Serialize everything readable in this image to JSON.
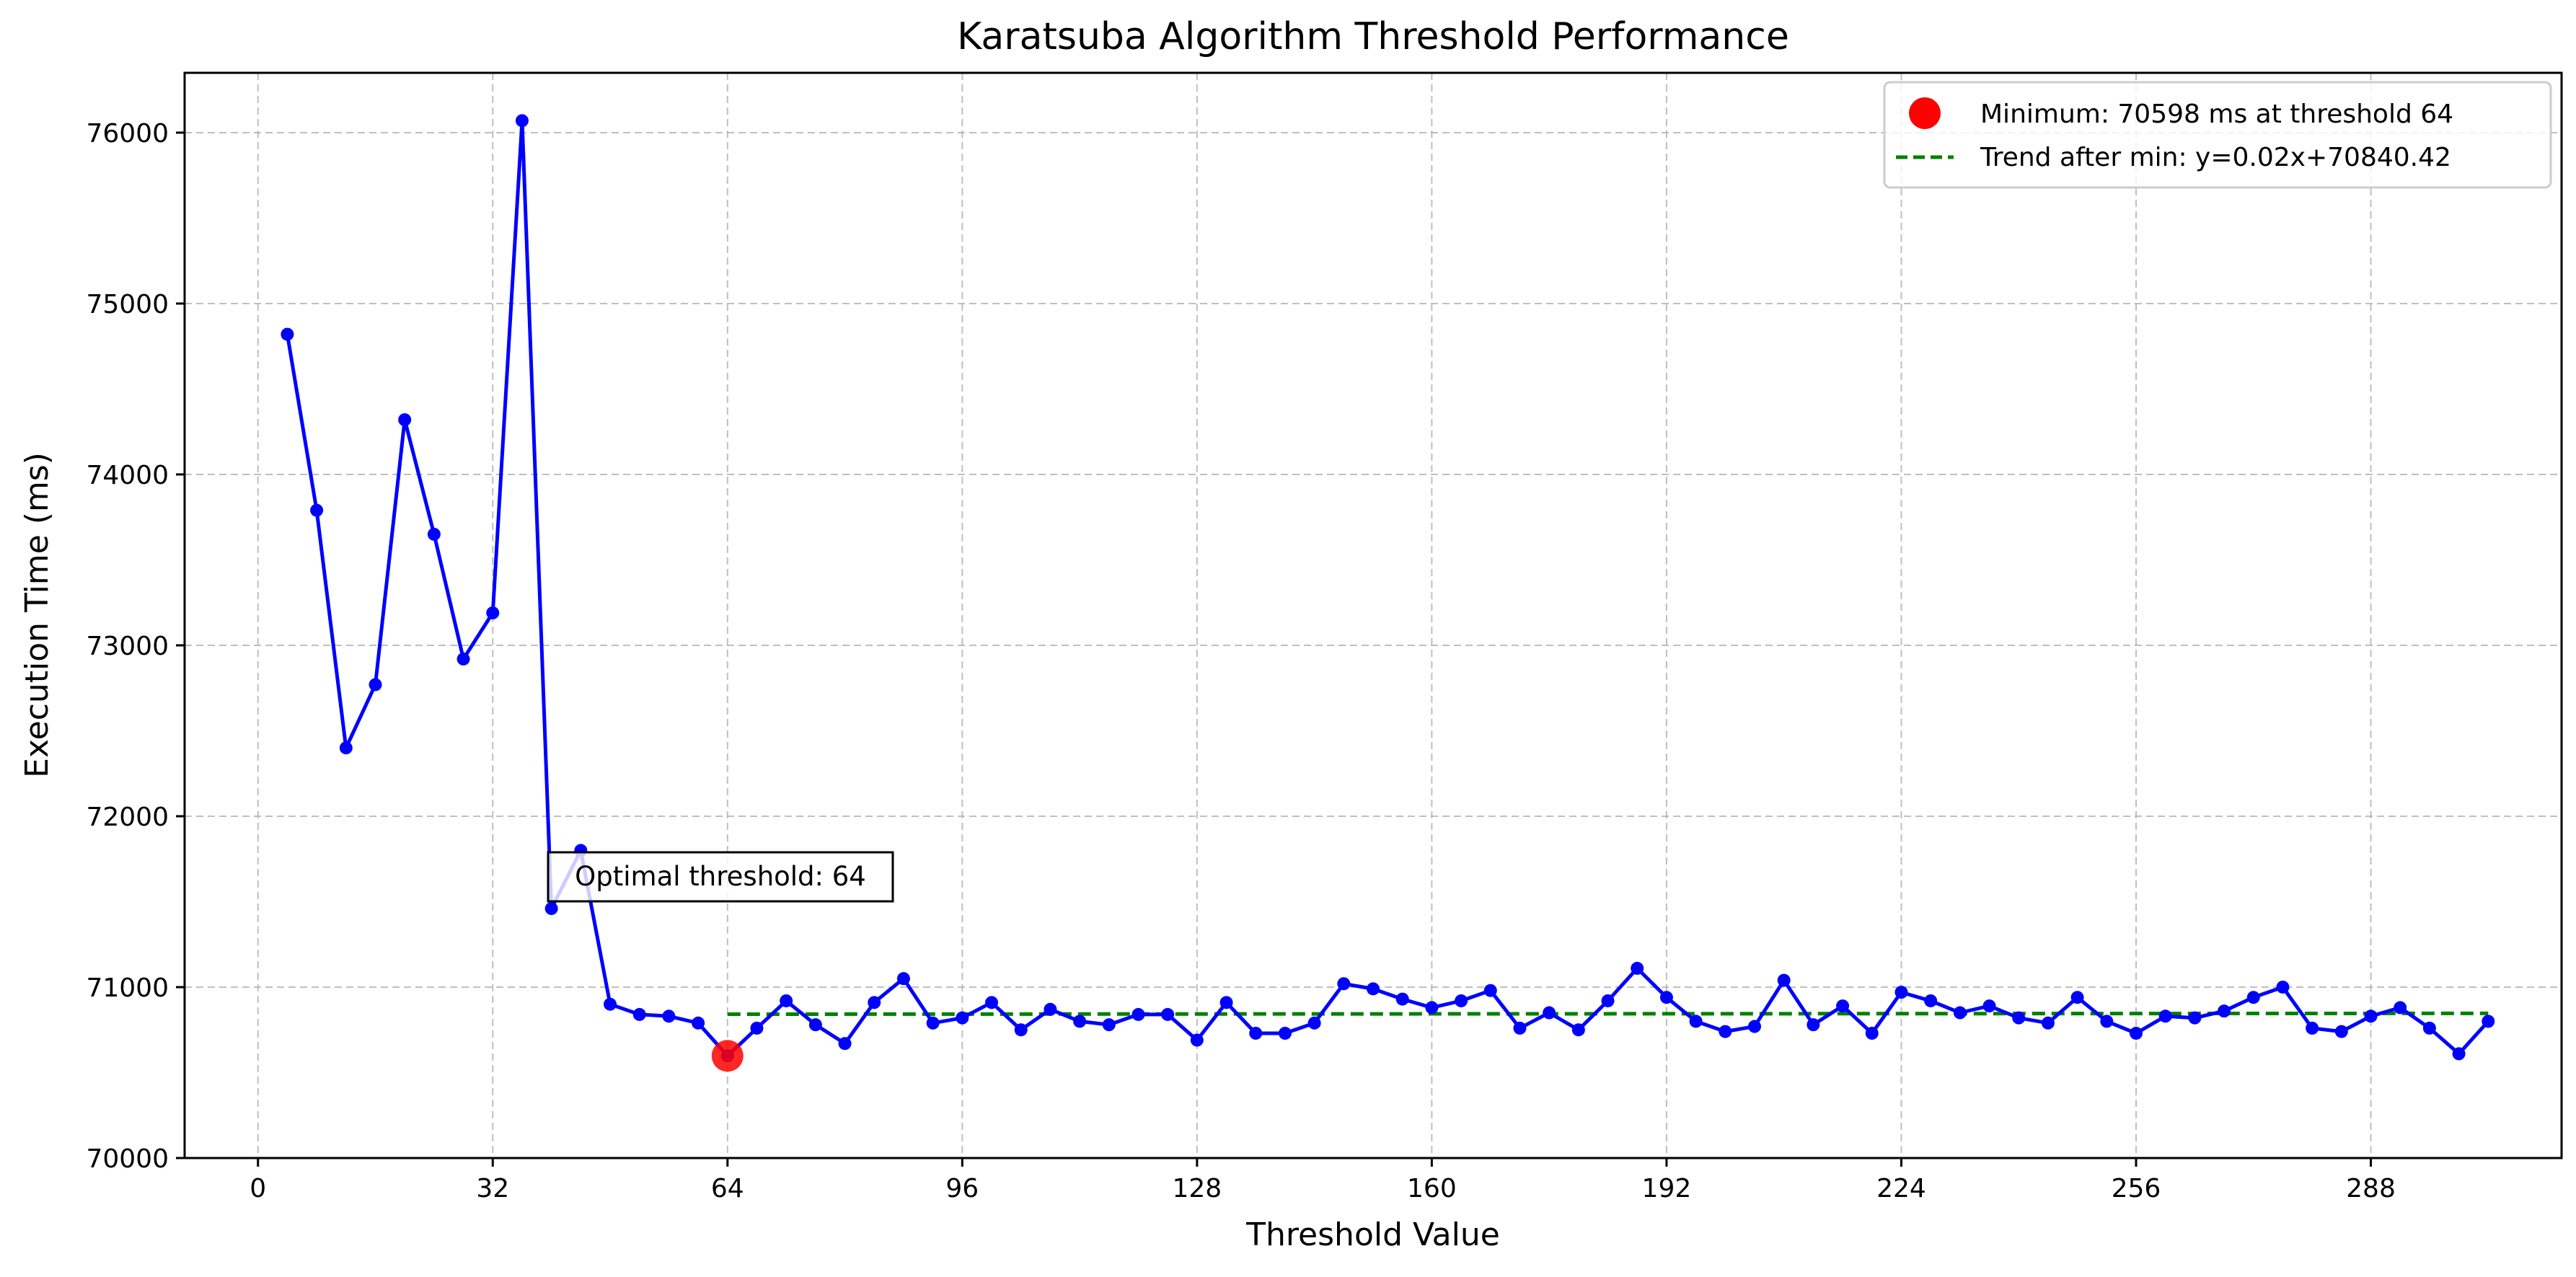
{
  "chart_data": {
    "type": "line",
    "title": "Karatsuba Algorithm Threshold Performance",
    "xlabel": "Threshold Value",
    "ylabel": "Execution Time (ms)",
    "xlim": [
      -10,
      314
    ],
    "ylim": [
      70000,
      76350
    ],
    "xticks": [
      0,
      32,
      64,
      96,
      128,
      160,
      192,
      224,
      256,
      288
    ],
    "yticks": [
      70000,
      71000,
      72000,
      73000,
      74000,
      75000,
      76000
    ],
    "grid": true,
    "legend_position": "top-right",
    "series": [
      {
        "type": "line",
        "color": "#0000ff",
        "marker": "circle",
        "x": [
          4,
          8,
          12,
          16,
          20,
          24,
          28,
          32,
          36,
          40,
          44,
          48,
          52,
          56,
          60,
          64,
          68,
          72,
          76,
          80,
          84,
          88,
          92,
          96,
          100,
          104,
          108,
          112,
          116,
          120,
          124,
          128,
          132,
          136,
          140,
          144,
          148,
          152,
          156,
          160,
          164,
          168,
          172,
          176,
          180,
          184,
          188,
          192,
          196,
          200,
          204,
          208,
          212,
          216,
          220,
          224,
          228,
          232,
          236,
          240,
          244,
          248,
          252,
          256,
          260,
          264,
          268,
          272,
          276,
          280,
          284,
          288,
          292,
          296,
          300,
          304
        ],
        "y": [
          74820,
          73790,
          72400,
          72770,
          74320,
          73650,
          72920,
          73190,
          76070,
          71460,
          71800,
          70900,
          70840,
          70830,
          70790,
          70598,
          70760,
          70920,
          70780,
          70670,
          70910,
          71050,
          70790,
          70820,
          70910,
          70750,
          70870,
          70800,
          70780,
          70840,
          70840,
          70690,
          70910,
          70730,
          70730,
          70790,
          71020,
          70990,
          70930,
          70880,
          70920,
          70980,
          70760,
          70850,
          70750,
          70920,
          71110,
          70940,
          70800,
          70740,
          70770,
          71040,
          70780,
          70890,
          70730,
          70970,
          70920,
          70850,
          70890,
          70820,
          70790,
          70940,
          70800,
          70730,
          70830,
          70820,
          70860,
          70940,
          71000,
          70760,
          70740,
          70830,
          70880,
          70760,
          70610,
          70800
        ]
      },
      {
        "type": "scatter",
        "name": "Minimum: 70598 ms at threshold 64",
        "color": "#ff0000",
        "x": [
          64
        ],
        "y": [
          70598
        ]
      },
      {
        "type": "trend",
        "name": "Trend after min: y=0.02x+70840.42",
        "color": "#008000",
        "style": "dashed",
        "x": [
          64,
          304
        ],
        "slope": 0.02,
        "intercept": 70840.42
      }
    ],
    "annotation": {
      "text": "Optimal threshold: 64"
    }
  }
}
